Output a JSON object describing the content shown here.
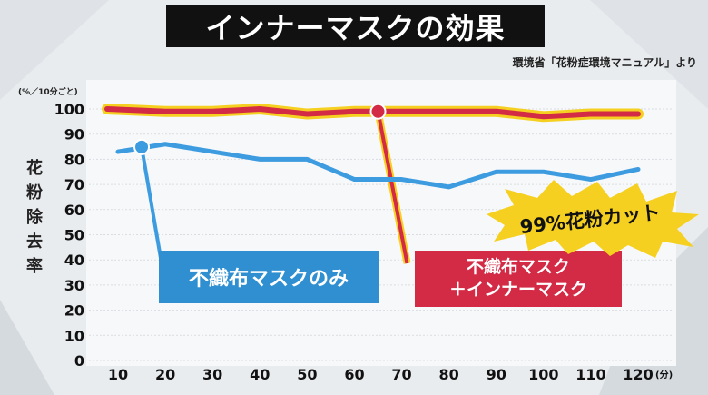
{
  "title": "インナーマスクの効果",
  "source": "環境省「花粉症環境マニュアル」より",
  "unit_label": "(%／10分ごと)",
  "chart_data": {
    "type": "line",
    "title": "インナーマスクの効果",
    "ylabel": "花粉除去率",
    "xlabel": "(分)",
    "x": [
      10,
      20,
      30,
      40,
      50,
      60,
      70,
      80,
      90,
      100,
      110,
      120
    ],
    "ylim": [
      0,
      100
    ],
    "yticks": [
      0,
      10,
      20,
      30,
      40,
      50,
      60,
      70,
      80,
      90,
      100
    ],
    "series": [
      {
        "name": "不織布マスク＋インナーマスク",
        "color": "#d32a45",
        "values": [
          100,
          99,
          99,
          100,
          98,
          99,
          99,
          99,
          99,
          97,
          98,
          98
        ]
      },
      {
        "name": "不織布マスクのみ",
        "color": "#3d9be0",
        "values": [
          83,
          86,
          83,
          80,
          80,
          72,
          72,
          69,
          75,
          75,
          72,
          76
        ]
      }
    ],
    "annotation": "99%花粉カット"
  },
  "labels": {
    "blue_line1": "不織布マスクのみ",
    "red_line1": "不織布マスク",
    "red_line2": "＋インナーマスク",
    "burst": "99%花粉カット"
  },
  "ylabel_chars": [
    "花",
    "粉",
    "除",
    "去",
    "率"
  ]
}
